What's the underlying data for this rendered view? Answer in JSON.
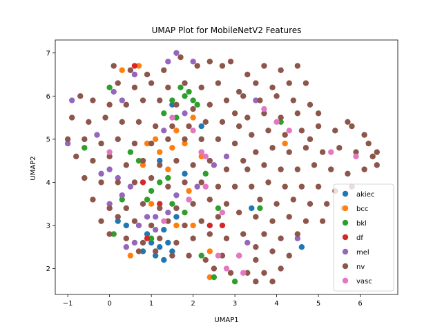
{
  "chart_data": {
    "type": "scatter",
    "title": "UMAP Plot for MobileNetV2 Features",
    "xlabel": "UMAP1",
    "ylabel": "UMAP2",
    "xlim": [
      -1.3,
      6.9
    ],
    "ylim": [
      1.4,
      7.3
    ],
    "xticks": [
      -1,
      0,
      1,
      2,
      3,
      4,
      5,
      6
    ],
    "yticks": [
      2,
      3,
      4,
      5,
      6,
      7
    ],
    "legend_position": "lower-right",
    "series": [
      {
        "name": "akiec",
        "color": "#1f77b4",
        "points": [
          [
            1.2,
            2.5
          ],
          [
            1.1,
            2.3
          ],
          [
            1.4,
            2.6
          ],
          [
            1.3,
            2.2
          ],
          [
            0.9,
            2.8
          ],
          [
            1.5,
            2.4
          ],
          [
            1.0,
            2.6
          ],
          [
            1.6,
            3.2
          ],
          [
            0.4,
            3.0
          ],
          [
            1.3,
            2.9
          ],
          [
            4.6,
            2.5
          ],
          [
            3.4,
            3.4
          ],
          [
            0.2,
            3.1
          ],
          [
            1.8,
            4.2
          ],
          [
            1.2,
            4.5
          ],
          [
            2.2,
            5.3
          ],
          [
            1.5,
            5.8
          ],
          [
            0.8,
            2.4
          ]
        ]
      },
      {
        "name": "bcc",
        "color": "#ff7f0e",
        "points": [
          [
            0.7,
            6.7
          ],
          [
            0.3,
            6.6
          ],
          [
            2.0,
            5.5
          ],
          [
            1.5,
            4.8
          ],
          [
            1.8,
            4.9
          ],
          [
            1.2,
            4.7
          ],
          [
            0.8,
            4.4
          ],
          [
            1.4,
            4.3
          ],
          [
            2.2,
            4.6
          ],
          [
            1.9,
            3.8
          ],
          [
            1.0,
            3.5
          ],
          [
            1.6,
            3.0
          ],
          [
            2.0,
            3.0
          ],
          [
            2.4,
            2.4
          ],
          [
            0.5,
            2.3
          ],
          [
            2.4,
            1.8
          ],
          [
            0.9,
            4.9
          ],
          [
            1.6,
            5.2
          ],
          [
            4.2,
            4.9
          ],
          [
            1.1,
            5.0
          ]
        ]
      },
      {
        "name": "bkl",
        "color": "#2ca02c",
        "points": [
          [
            1.7,
            6.2
          ],
          [
            1.9,
            6.1
          ],
          [
            2.0,
            5.9
          ],
          [
            1.8,
            6.0
          ],
          [
            2.1,
            5.8
          ],
          [
            1.5,
            5.9
          ],
          [
            1.3,
            5.6
          ],
          [
            1.6,
            5.5
          ],
          [
            1.4,
            4.1
          ],
          [
            1.2,
            4.0
          ],
          [
            1.0,
            3.8
          ],
          [
            0.9,
            3.6
          ],
          [
            0.7,
            4.5
          ],
          [
            0.5,
            4.7
          ],
          [
            1.5,
            3.5
          ],
          [
            1.8,
            3.3
          ],
          [
            2.2,
            2.3
          ],
          [
            2.5,
            1.8
          ],
          [
            3.0,
            1.7
          ],
          [
            4.1,
            5.4
          ],
          [
            -0.6,
            4.8
          ],
          [
            0.0,
            6.2
          ],
          [
            2.6,
            3.4
          ],
          [
            1.0,
            2.7
          ],
          [
            3.6,
            3.4
          ],
          [
            0.1,
            2.8
          ],
          [
            2.3,
            4.2
          ],
          [
            0.3,
            3.6
          ]
        ]
      },
      {
        "name": "df",
        "color": "#d62728",
        "points": [
          [
            0.6,
            6.7
          ],
          [
            2.2,
            4.7
          ],
          [
            2.7,
            3.0
          ],
          [
            0.8,
            4.0
          ],
          [
            0.9,
            2.7
          ],
          [
            2.4,
            3.0
          ],
          [
            1.2,
            3.5
          ]
        ]
      },
      {
        "name": "mel",
        "color": "#9467bd",
        "points": [
          [
            -0.9,
            5.9
          ],
          [
            -1.0,
            4.9
          ],
          [
            0.1,
            6.1
          ],
          [
            0.3,
            5.9
          ],
          [
            0.6,
            6.5
          ],
          [
            1.4,
            6.8
          ],
          [
            1.6,
            7.0
          ],
          [
            2.0,
            6.8
          ],
          [
            -0.3,
            5.1
          ],
          [
            -0.2,
            4.2
          ],
          [
            0.2,
            4.1
          ],
          [
            0.0,
            4.3
          ],
          [
            0.5,
            3.9
          ],
          [
            0.3,
            3.7
          ],
          [
            1.1,
            3.2
          ],
          [
            0.7,
            3.0
          ],
          [
            0.9,
            3.2
          ],
          [
            1.6,
            3.7
          ],
          [
            1.4,
            3.3
          ],
          [
            1.9,
            3.6
          ],
          [
            2.1,
            3.9
          ],
          [
            0.4,
            2.5
          ],
          [
            0.6,
            2.6
          ],
          [
            1.1,
            2.9
          ],
          [
            2.5,
            4.4
          ],
          [
            2.8,
            4.6
          ],
          [
            1.8,
            5.6
          ],
          [
            1.3,
            5.2
          ],
          [
            3.5,
            5.9
          ],
          [
            3.3,
            2.6
          ],
          [
            4.5,
            2.7
          ],
          [
            0.0,
            3.5
          ]
        ]
      },
      {
        "name": "nv",
        "color": "#8c564b",
        "points": [
          [
            0.1,
            6.7
          ],
          [
            0.5,
            6.6
          ],
          [
            0.9,
            6.5
          ],
          [
            1.3,
            6.6
          ],
          [
            1.7,
            6.9
          ],
          [
            2.1,
            6.7
          ],
          [
            2.4,
            6.8
          ],
          [
            2.7,
            6.7
          ],
          [
            0.2,
            6.3
          ],
          [
            0.6,
            6.2
          ],
          [
            1.0,
            6.3
          ],
          [
            1.4,
            6.2
          ],
          [
            1.8,
            6.3
          ],
          [
            2.2,
            6.2
          ],
          [
            2.6,
            6.3
          ],
          [
            -0.7,
            6.0
          ],
          [
            -0.4,
            5.9
          ],
          [
            0.0,
            5.8
          ],
          [
            0.4,
            5.8
          ],
          [
            0.8,
            5.9
          ],
          [
            1.2,
            5.9
          ],
          [
            1.6,
            5.8
          ],
          [
            2.0,
            5.7
          ],
          [
            2.4,
            5.8
          ],
          [
            2.8,
            5.9
          ],
          [
            3.0,
            5.6
          ],
          [
            -0.9,
            5.5
          ],
          [
            -0.5,
            5.4
          ],
          [
            -0.1,
            5.5
          ],
          [
            0.3,
            5.4
          ],
          [
            0.7,
            5.4
          ],
          [
            1.1,
            5.3
          ],
          [
            1.5,
            5.3
          ],
          [
            1.9,
            5.3
          ],
          [
            2.3,
            5.4
          ],
          [
            2.7,
            5.4
          ],
          [
            3.1,
            5.3
          ],
          [
            -1.0,
            5.0
          ],
          [
            -0.6,
            5.0
          ],
          [
            -0.2,
            4.9
          ],
          [
            0.2,
            5.0
          ],
          [
            0.6,
            4.9
          ],
          [
            1.0,
            4.9
          ],
          [
            1.4,
            5.0
          ],
          [
            1.8,
            5.0
          ],
          [
            2.2,
            5.0
          ],
          [
            2.6,
            5.0
          ],
          [
            3.0,
            4.9
          ],
          [
            -0.8,
            4.6
          ],
          [
            -0.4,
            4.5
          ],
          [
            0.0,
            4.6
          ],
          [
            0.4,
            4.4
          ],
          [
            0.8,
            4.5
          ],
          [
            1.2,
            4.4
          ],
          [
            1.6,
            4.5
          ],
          [
            2.0,
            4.4
          ],
          [
            2.4,
            4.5
          ],
          [
            2.8,
            4.3
          ],
          [
            3.2,
            4.5
          ],
          [
            -0.6,
            4.1
          ],
          [
            -0.2,
            4.0
          ],
          [
            0.2,
            4.0
          ],
          [
            0.6,
            4.0
          ],
          [
            1.0,
            4.1
          ],
          [
            1.4,
            3.9
          ],
          [
            1.8,
            4.0
          ],
          [
            2.2,
            4.0
          ],
          [
            2.6,
            3.9
          ],
          [
            3.0,
            3.9
          ],
          [
            -0.4,
            3.6
          ],
          [
            0.0,
            3.4
          ],
          [
            0.4,
            3.4
          ],
          [
            0.8,
            3.5
          ],
          [
            1.2,
            3.4
          ],
          [
            1.6,
            3.4
          ],
          [
            2.0,
            3.5
          ],
          [
            2.4,
            3.6
          ],
          [
            2.8,
            3.5
          ],
          [
            3.1,
            3.3
          ],
          [
            -0.2,
            3.1
          ],
          [
            0.2,
            3.2
          ],
          [
            0.6,
            3.1
          ],
          [
            1.0,
            3.0
          ],
          [
            1.4,
            3.1
          ],
          [
            1.8,
            3.0
          ],
          [
            2.2,
            3.1
          ],
          [
            2.6,
            3.2
          ],
          [
            0.0,
            2.8
          ],
          [
            0.4,
            2.7
          ],
          [
            0.8,
            2.6
          ],
          [
            1.2,
            2.7
          ],
          [
            1.6,
            2.6
          ],
          [
            2.0,
            2.7
          ],
          [
            2.4,
            2.8
          ],
          [
            2.8,
            2.7
          ],
          [
            3.2,
            2.8
          ],
          [
            0.7,
            2.4
          ],
          [
            1.1,
            2.4
          ],
          [
            1.5,
            2.3
          ],
          [
            1.9,
            2.3
          ],
          [
            2.3,
            2.2
          ],
          [
            2.7,
            2.3
          ],
          [
            3.1,
            2.3
          ],
          [
            3.5,
            2.2
          ],
          [
            2.5,
            2.0
          ],
          [
            2.9,
            1.9
          ],
          [
            3.3,
            1.9
          ],
          [
            3.7,
            1.9
          ],
          [
            4.1,
            2.0
          ],
          [
            3.5,
            1.7
          ],
          [
            3.9,
            1.7
          ],
          [
            3.3,
            6.5
          ],
          [
            3.7,
            6.7
          ],
          [
            4.1,
            6.6
          ],
          [
            4.5,
            6.7
          ],
          [
            3.5,
            6.3
          ],
          [
            3.9,
            6.2
          ],
          [
            4.3,
            6.3
          ],
          [
            4.7,
            6.3
          ],
          [
            3.2,
            6.0
          ],
          [
            3.6,
            5.9
          ],
          [
            4.0,
            6.0
          ],
          [
            4.4,
            5.9
          ],
          [
            4.8,
            5.8
          ],
          [
            3.3,
            5.5
          ],
          [
            3.7,
            5.6
          ],
          [
            4.1,
            5.5
          ],
          [
            4.5,
            5.6
          ],
          [
            3.4,
            5.1
          ],
          [
            3.8,
            5.2
          ],
          [
            4.2,
            5.1
          ],
          [
            4.6,
            5.2
          ],
          [
            5.0,
            5.3
          ],
          [
            5.4,
            5.2
          ],
          [
            5.8,
            5.3
          ],
          [
            3.5,
            4.7
          ],
          [
            3.9,
            4.8
          ],
          [
            4.3,
            4.7
          ],
          [
            4.7,
            4.8
          ],
          [
            5.1,
            4.7
          ],
          [
            5.5,
            4.8
          ],
          [
            5.9,
            4.7
          ],
          [
            6.3,
            4.6
          ],
          [
            3.3,
            4.3
          ],
          [
            3.7,
            4.4
          ],
          [
            4.1,
            4.3
          ],
          [
            4.5,
            4.3
          ],
          [
            4.9,
            4.4
          ],
          [
            5.3,
            4.3
          ],
          [
            5.7,
            4.2
          ],
          [
            6.1,
            4.3
          ],
          [
            6.4,
            4.4
          ],
          [
            3.4,
            3.9
          ],
          [
            3.8,
            4.0
          ],
          [
            4.2,
            3.9
          ],
          [
            4.6,
            3.9
          ],
          [
            5.0,
            3.9
          ],
          [
            5.4,
            3.8
          ],
          [
            5.8,
            3.9
          ],
          [
            3.6,
            3.6
          ],
          [
            4.0,
            3.5
          ],
          [
            4.4,
            3.6
          ],
          [
            4.8,
            3.5
          ],
          [
            5.2,
            3.5
          ],
          [
            5.6,
            3.4
          ],
          [
            3.5,
            3.2
          ],
          [
            3.9,
            3.1
          ],
          [
            4.3,
            3.2
          ],
          [
            4.7,
            3.1
          ],
          [
            5.1,
            3.1
          ],
          [
            3.7,
            2.8
          ],
          [
            4.1,
            2.7
          ],
          [
            4.5,
            2.8
          ],
          [
            3.5,
            2.5
          ],
          [
            3.9,
            2.4
          ],
          [
            4.3,
            2.3
          ],
          [
            5.7,
            5.4
          ],
          [
            6.1,
            5.1
          ],
          [
            6.4,
            4.7
          ],
          [
            6.2,
            4.9
          ],
          [
            5.0,
            5.6
          ],
          [
            4.8,
            5.0
          ],
          [
            2.9,
            6.8
          ],
          [
            3.1,
            6.1
          ]
        ]
      },
      {
        "name": "vasc",
        "color": "#e377c2",
        "points": [
          [
            3.7,
            5.7
          ],
          [
            4.0,
            5.4
          ],
          [
            4.3,
            5.2
          ],
          [
            2.0,
            5.2
          ],
          [
            1.5,
            5.5
          ],
          [
            2.3,
            3.9
          ],
          [
            1.9,
            3.6
          ],
          [
            2.6,
            2.3
          ],
          [
            2.8,
            2.0
          ],
          [
            3.1,
            2.3
          ],
          [
            5.3,
            4.7
          ],
          [
            5.9,
            4.6
          ],
          [
            2.2,
            4.7
          ],
          [
            0.0,
            4.7
          ],
          [
            2.7,
            3.3
          ],
          [
            3.2,
            1.9
          ],
          [
            1.3,
            3.1
          ],
          [
            2.3,
            4.6
          ]
        ]
      }
    ]
  }
}
